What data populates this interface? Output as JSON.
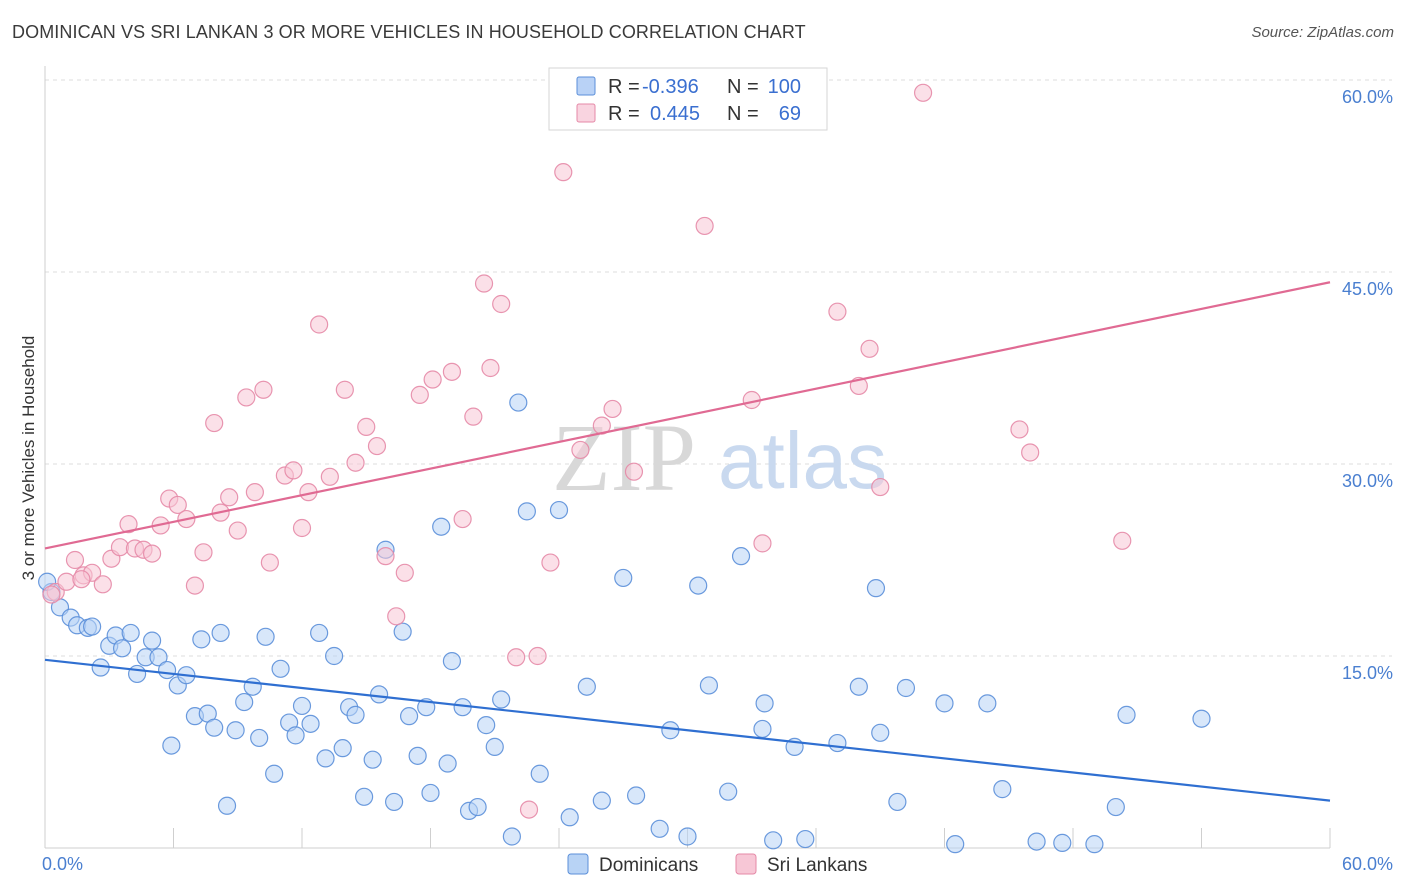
{
  "title": "DOMINICAN VS SRI LANKAN 3 OR MORE VEHICLES IN HOUSEHOLD CORRELATION CHART",
  "source": "Source: ZipAtlas.com",
  "watermark": {
    "zip": "ZIP",
    "atlas": "atlas"
  },
  "legend": {
    "rows": [
      {
        "r_label": "R =",
        "r_value": "-0.396",
        "n_label": "N =",
        "n_value": "100",
        "color": "#8ab4f0",
        "stroke": "#5b8fd9"
      },
      {
        "r_label": "R =",
        "r_value": "0.445",
        "n_label": "N =",
        "n_value": "69",
        "color": "#f5b8cb",
        "stroke": "#e589a7"
      }
    ]
  },
  "bottom_legend": [
    {
      "name": "Dominicans",
      "color": "#b8d3f5",
      "stroke": "#5b8fd9"
    },
    {
      "name": "Sri Lankans",
      "color": "#f7c7d6",
      "stroke": "#e589a7"
    }
  ],
  "chart_data": {
    "type": "scatter",
    "xlabel": "",
    "ylabel": "3 or more Vehicles in Household",
    "xlim": [
      0,
      60
    ],
    "ylim": [
      0,
      60
    ],
    "x_tick_labels": [
      "0.0%",
      "60.0%"
    ],
    "y_ticks": [
      15,
      30,
      45,
      60
    ],
    "y_tick_labels": [
      "15.0%",
      "30.0%",
      "45.0%",
      "60.0%"
    ],
    "grid": true,
    "series": [
      {
        "name": "Dominicans",
        "color": "#5b8fd9",
        "fill": "#b8d3f5",
        "trend": {
          "x": [
            0,
            60
          ],
          "y": [
            14.7,
            3.7
          ],
          "color": "#2f6fd1"
        },
        "points": [
          [
            0.3,
            20.0
          ],
          [
            0.7,
            18.8
          ],
          [
            1.2,
            18.0
          ],
          [
            1.5,
            17.4
          ],
          [
            2.0,
            17.2
          ],
          [
            2.2,
            17.3
          ],
          [
            2.6,
            14.1
          ],
          [
            3.0,
            15.8
          ],
          [
            3.3,
            16.6
          ],
          [
            3.6,
            15.6
          ],
          [
            4.0,
            16.8
          ],
          [
            4.3,
            13.6
          ],
          [
            4.7,
            14.9
          ],
          [
            5.0,
            16.2
          ],
          [
            5.3,
            14.9
          ],
          [
            5.7,
            13.9
          ],
          [
            5.9,
            8.0
          ],
          [
            6.2,
            12.7
          ],
          [
            6.6,
            13.5
          ],
          [
            7.0,
            10.3
          ],
          [
            7.3,
            16.3
          ],
          [
            7.6,
            10.5
          ],
          [
            7.9,
            9.4
          ],
          [
            8.2,
            16.8
          ],
          [
            8.5,
            3.3
          ],
          [
            8.9,
            9.2
          ],
          [
            9.3,
            11.4
          ],
          [
            9.7,
            12.6
          ],
          [
            10.0,
            8.6
          ],
          [
            10.3,
            16.5
          ],
          [
            10.7,
            5.8
          ],
          [
            11.0,
            14.0
          ],
          [
            11.4,
            9.8
          ],
          [
            11.7,
            8.8
          ],
          [
            12.0,
            11.1
          ],
          [
            12.4,
            9.7
          ],
          [
            12.8,
            16.8
          ],
          [
            13.1,
            7.0
          ],
          [
            13.5,
            15.0
          ],
          [
            13.9,
            7.8
          ],
          [
            14.2,
            11.0
          ],
          [
            14.5,
            10.4
          ],
          [
            14.9,
            4.0
          ],
          [
            15.3,
            6.9
          ],
          [
            15.6,
            12.0
          ],
          [
            15.9,
            23.3
          ],
          [
            16.3,
            3.6
          ],
          [
            16.7,
            16.9
          ],
          [
            17.0,
            10.3
          ],
          [
            17.4,
            7.2
          ],
          [
            17.8,
            11.0
          ],
          [
            18.0,
            4.3
          ],
          [
            18.5,
            25.1
          ],
          [
            18.8,
            6.6
          ],
          [
            19.0,
            14.6
          ],
          [
            19.5,
            11.0
          ],
          [
            19.8,
            2.9
          ],
          [
            20.2,
            3.2
          ],
          [
            20.6,
            9.6
          ],
          [
            21.0,
            7.9
          ],
          [
            21.3,
            11.6
          ],
          [
            21.8,
            0.9
          ],
          [
            22.1,
            34.8
          ],
          [
            22.5,
            26.3
          ],
          [
            23.1,
            5.8
          ],
          [
            24.0,
            26.4
          ],
          [
            24.5,
            2.4
          ],
          [
            25.3,
            12.6
          ],
          [
            26.0,
            3.7
          ],
          [
            27.0,
            21.1
          ],
          [
            27.6,
            4.1
          ],
          [
            28.7,
            1.5
          ],
          [
            29.2,
            9.2
          ],
          [
            30.0,
            0.9
          ],
          [
            30.5,
            20.5
          ],
          [
            31.0,
            12.7
          ],
          [
            31.9,
            4.4
          ],
          [
            32.5,
            22.8
          ],
          [
            33.5,
            9.3
          ],
          [
            33.6,
            11.3
          ],
          [
            34.0,
            0.6
          ],
          [
            35.0,
            7.9
          ],
          [
            35.5,
            0.7
          ],
          [
            37.0,
            8.2
          ],
          [
            38.0,
            12.6
          ],
          [
            38.8,
            20.3
          ],
          [
            39.0,
            9.0
          ],
          [
            39.8,
            3.6
          ],
          [
            40.2,
            12.5
          ],
          [
            42.0,
            11.3
          ],
          [
            42.5,
            0.3
          ],
          [
            44.0,
            11.3
          ],
          [
            44.7,
            4.6
          ],
          [
            46.3,
            0.5
          ],
          [
            47.5,
            0.4
          ],
          [
            49.0,
            0.3
          ],
          [
            50.0,
            3.2
          ],
          [
            50.5,
            10.4
          ],
          [
            54.0,
            10.1
          ],
          [
            0.1,
            20.8
          ]
        ]
      },
      {
        "name": "Sri Lankans",
        "color": "#e589a7",
        "fill": "#f7c7d6",
        "trend": {
          "x": [
            0,
            60
          ],
          "y": [
            23.4,
            44.2
          ],
          "color": "#e06a93"
        },
        "points": [
          [
            0.5,
            20.0
          ],
          [
            1.0,
            20.8
          ],
          [
            1.4,
            22.5
          ],
          [
            1.8,
            21.3
          ],
          [
            2.2,
            21.5
          ],
          [
            2.7,
            20.6
          ],
          [
            3.1,
            22.6
          ],
          [
            3.5,
            23.5
          ],
          [
            3.9,
            25.3
          ],
          [
            4.2,
            23.4
          ],
          [
            4.6,
            23.3
          ],
          [
            5.0,
            23.0
          ],
          [
            5.4,
            25.2
          ],
          [
            5.8,
            27.3
          ],
          [
            6.2,
            26.8
          ],
          [
            6.6,
            25.7
          ],
          [
            7.0,
            20.5
          ],
          [
            7.4,
            23.1
          ],
          [
            7.9,
            33.2
          ],
          [
            8.2,
            26.2
          ],
          [
            8.6,
            27.4
          ],
          [
            9.0,
            24.8
          ],
          [
            9.4,
            35.2
          ],
          [
            9.8,
            27.8
          ],
          [
            10.2,
            35.8
          ],
          [
            10.5,
            22.3
          ],
          [
            11.2,
            29.1
          ],
          [
            11.6,
            29.5
          ],
          [
            12.0,
            25.0
          ],
          [
            12.3,
            27.8
          ],
          [
            12.8,
            40.9
          ],
          [
            13.3,
            29.0
          ],
          [
            14.0,
            35.8
          ],
          [
            14.5,
            30.1
          ],
          [
            15.0,
            32.9
          ],
          [
            15.5,
            31.4
          ],
          [
            15.9,
            22.8
          ],
          [
            16.4,
            18.1
          ],
          [
            16.8,
            21.5
          ],
          [
            17.5,
            35.4
          ],
          [
            18.1,
            36.6
          ],
          [
            19.0,
            37.2
          ],
          [
            19.5,
            25.7
          ],
          [
            20.0,
            33.7
          ],
          [
            20.5,
            44.1
          ],
          [
            20.8,
            37.5
          ],
          [
            21.3,
            42.5
          ],
          [
            22.0,
            14.9
          ],
          [
            22.6,
            3.0
          ],
          [
            23.0,
            15.0
          ],
          [
            23.6,
            22.3
          ],
          [
            24.2,
            52.8
          ],
          [
            25.0,
            31.1
          ],
          [
            26.0,
            33.0
          ],
          [
            26.5,
            34.3
          ],
          [
            27.5,
            29.4
          ],
          [
            30.8,
            48.6
          ],
          [
            33.0,
            35.0
          ],
          [
            33.5,
            23.8
          ],
          [
            37.0,
            41.9
          ],
          [
            38.0,
            36.1
          ],
          [
            38.5,
            39.0
          ],
          [
            39.0,
            28.2
          ],
          [
            41.0,
            59.0
          ],
          [
            45.5,
            32.7
          ],
          [
            46.0,
            30.9
          ],
          [
            50.3,
            24.0
          ],
          [
            0.3,
            19.8
          ],
          [
            1.7,
            21.0
          ]
        ]
      }
    ]
  }
}
